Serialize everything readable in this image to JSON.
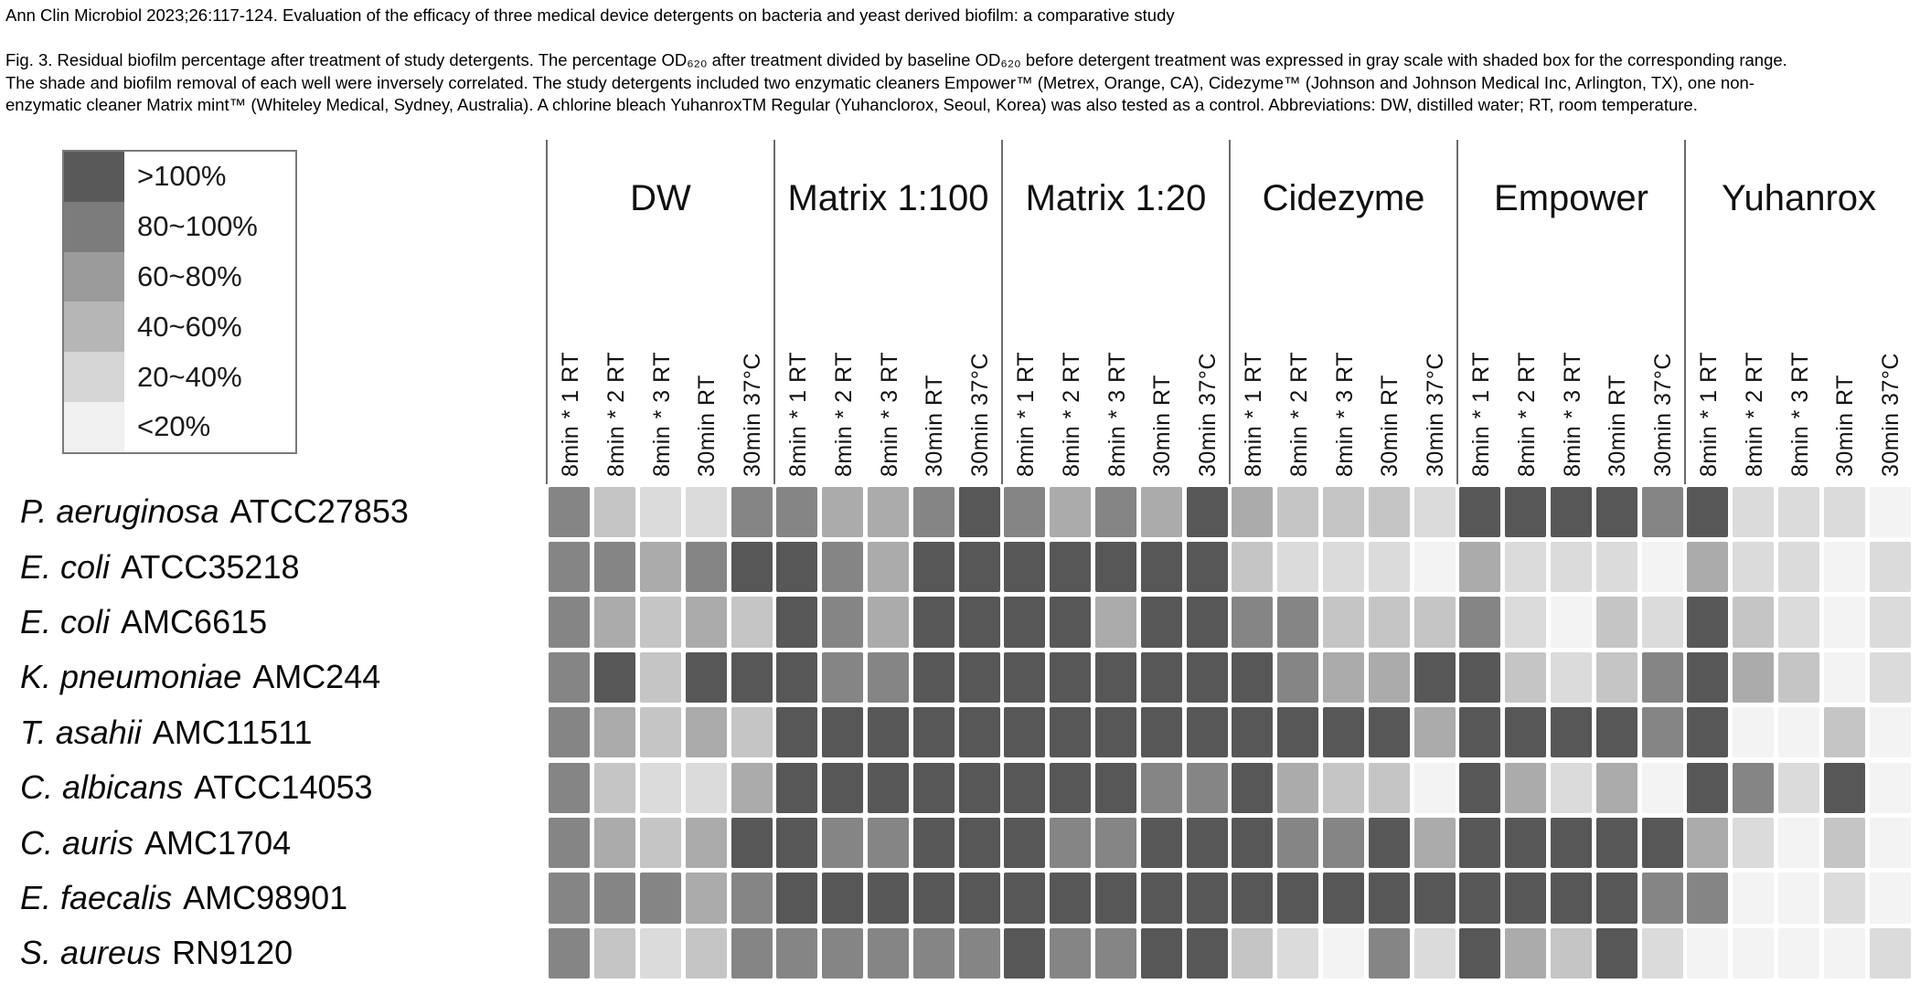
{
  "header": {
    "citation": "Ann Clin Microbiol 2023;26:117-124. Evaluation of the efficacy of three medical device detergents on bacteria and yeast derived biofilm: a comparative study",
    "caption_lines": [
      "Fig. 3. Residual biofilm percentage after treatment of study detergents. The percentage OD₆₂₀ after treatment divided by baseline OD₆₂₀ before detergent treatment was expressed in gray scale with shaded box for the corresponding range.",
      "The shade and biofilm removal of each well were inversely correlated. The study detergents included two enzymatic cleaners Empower™ (Metrex, Orange, CA), Cidezyme™ (Johnson and Johnson Medical Inc, Arlington, TX), one non-",
      "enzymatic cleaner Matrix mint™ (Whiteley Medical, Sydney, Australia). A chlorine bleach YuhanroxTM Regular (Yuhanclorox, Seoul, Korea) was also tested as a control. Abbreviations: DW, distilled water; RT, room temperature."
    ]
  },
  "legend": {
    "items": [
      {
        "label": ">100%",
        "color": "#595959"
      },
      {
        "label": "80~100%",
        "color": "#7c7c7c"
      },
      {
        "label": "60~80%",
        "color": "#9b9b9b"
      },
      {
        "label": "40~60%",
        "color": "#b6b6b6"
      },
      {
        "label": "20~40%",
        "color": "#d5d5d5"
      },
      {
        "label": "<20%",
        "color": "#f0f0f0"
      }
    ]
  },
  "chart_data": {
    "type": "heatmap",
    "title": "Residual biofilm percentage after treatment of study detergents",
    "value_semantics": "Each cell level encodes residual biofilm OD620 range: 6=>100%, 5=80~100%, 4=60~80%, 3=40~60%, 2=20~40%, 1=<20%",
    "detergent_groups": [
      "DW",
      "Matrix 1:100",
      "Matrix 1:20",
      "Cidezyme",
      "Empower",
      "Yuhanrox"
    ],
    "conditions": [
      "8min * 1 RT",
      "8min * 2 RT",
      "8min * 3 RT",
      "30min RT",
      "30min 37°C"
    ],
    "level_ranges": {
      "6": ">100%",
      "5": "80~100%",
      "4": "60~80%",
      "3": "40~60%",
      "2": "20~40%",
      "1": "<20%"
    },
    "level_colors": {
      "6": "#575757",
      "5": "#858585",
      "4": "#ababab",
      "3": "#c5c5c5",
      "2": "#dbdbdb",
      "1": "#f3f3f3"
    },
    "rows": [
      {
        "organism": "P. aeruginosa",
        "strain": "ATCC27853",
        "levels": [
          5,
          3,
          2,
          2,
          5,
          5,
          4,
          4,
          5,
          6,
          5,
          4,
          5,
          4,
          6,
          4,
          3,
          3,
          3,
          2,
          6,
          6,
          6,
          6,
          5,
          6,
          2,
          2,
          2,
          1
        ]
      },
      {
        "organism": "E. coli",
        "strain": "ATCC35218",
        "levels": [
          5,
          5,
          4,
          5,
          6,
          6,
          5,
          4,
          6,
          6,
          6,
          6,
          6,
          6,
          6,
          3,
          2,
          2,
          2,
          1,
          4,
          2,
          2,
          2,
          1,
          4,
          2,
          2,
          1,
          2
        ]
      },
      {
        "organism": "E. coli",
        "strain": "AMC6615",
        "levels": [
          5,
          4,
          3,
          4,
          3,
          6,
          5,
          4,
          6,
          6,
          6,
          6,
          4,
          6,
          6,
          5,
          5,
          3,
          3,
          3,
          5,
          2,
          1,
          3,
          2,
          6,
          3,
          2,
          1,
          2
        ]
      },
      {
        "organism": "K. pneumoniae",
        "strain": "AMC244",
        "levels": [
          5,
          6,
          3,
          6,
          6,
          6,
          5,
          5,
          6,
          6,
          6,
          6,
          6,
          6,
          6,
          6,
          5,
          4,
          4,
          6,
          6,
          3,
          2,
          3,
          5,
          6,
          4,
          3,
          1,
          2
        ]
      },
      {
        "organism": "T. asahii",
        "strain": "AMC11511",
        "levels": [
          5,
          4,
          3,
          4,
          3,
          6,
          6,
          6,
          6,
          6,
          6,
          6,
          6,
          6,
          6,
          6,
          6,
          6,
          6,
          4,
          6,
          6,
          6,
          6,
          5,
          6,
          1,
          1,
          3,
          1
        ]
      },
      {
        "organism": "C. albicans",
        "strain": "ATCC14053",
        "levels": [
          5,
          3,
          2,
          2,
          4,
          6,
          6,
          6,
          6,
          6,
          6,
          6,
          6,
          5,
          5,
          6,
          4,
          3,
          3,
          1,
          6,
          4,
          2,
          4,
          1,
          6,
          5,
          2,
          6,
          1
        ]
      },
      {
        "organism": "C. auris",
        "strain": "AMC1704",
        "levels": [
          5,
          4,
          3,
          4,
          6,
          6,
          5,
          5,
          6,
          6,
          6,
          5,
          5,
          6,
          6,
          6,
          5,
          5,
          6,
          4,
          6,
          6,
          6,
          6,
          6,
          4,
          2,
          1,
          3,
          1
        ]
      },
      {
        "organism": "E. faecalis",
        "strain": "AMC98901",
        "levels": [
          5,
          5,
          5,
          4,
          5,
          6,
          6,
          6,
          6,
          6,
          6,
          6,
          6,
          6,
          6,
          6,
          6,
          6,
          6,
          6,
          6,
          6,
          6,
          6,
          5,
          5,
          1,
          1,
          2,
          1
        ]
      },
      {
        "organism": "S. aureus",
        "strain": "RN9120",
        "levels": [
          5,
          3,
          2,
          3,
          5,
          5,
          5,
          5,
          5,
          5,
          6,
          5,
          5,
          6,
          6,
          3,
          2,
          1,
          5,
          2,
          6,
          4,
          3,
          6,
          2,
          1,
          1,
          1,
          1,
          2
        ]
      }
    ]
  }
}
